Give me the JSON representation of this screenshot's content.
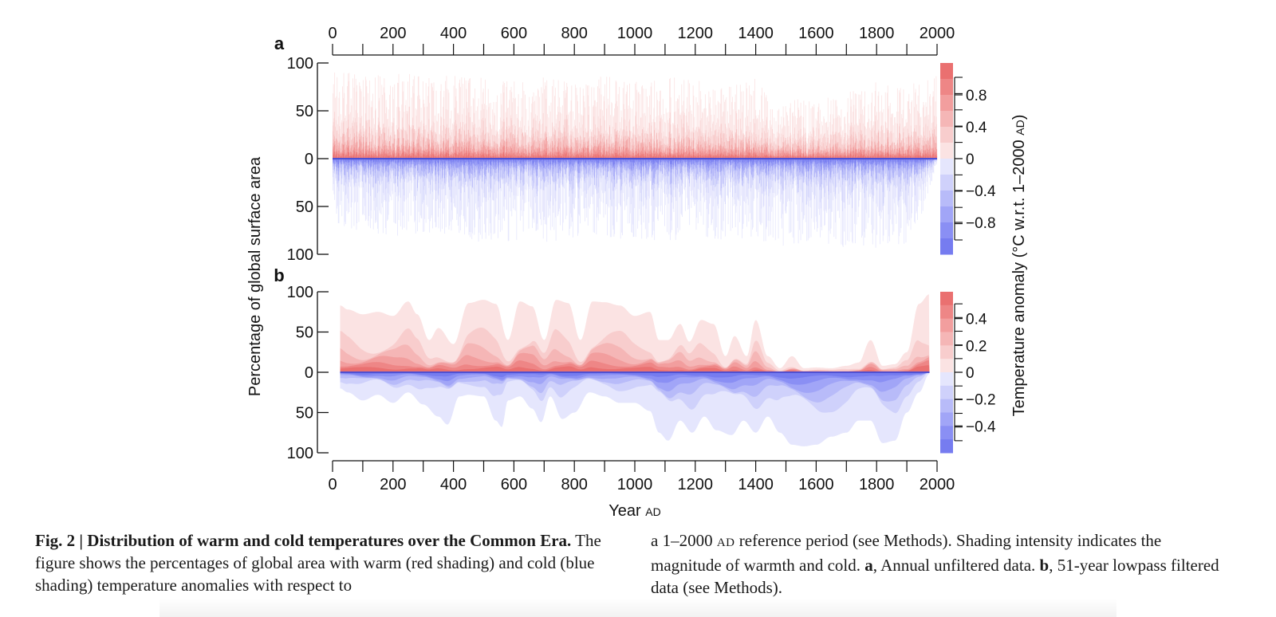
{
  "colors": {
    "warm": [
      "#fbe3e3",
      "#f8cdcd",
      "#f5b6b6",
      "#f29e9e",
      "#ee8686",
      "#ea7070"
    ],
    "cold": [
      "#e5e6fd",
      "#cfd1fb",
      "#b8bbf9",
      "#a1a5f7",
      "#8a8ff4",
      "#767cf0"
    ],
    "zero_line": "#5050d0"
  },
  "chart_data": [
    {
      "panel": "a",
      "type": "area",
      "description": "Annual unfiltered data",
      "xlim": [
        0,
        2000
      ],
      "ylim_warm": [
        0,
        100
      ],
      "ylim_cold": [
        0,
        100
      ],
      "x_ticks": [
        0,
        200,
        400,
        600,
        800,
        1000,
        1200,
        1400,
        1600,
        1800,
        2000
      ],
      "x_ticks_top": [
        "0",
        "200",
        "400",
        "600",
        "800",
        "1000",
        "1200",
        "1400",
        "1600",
        "1800",
        "2000"
      ],
      "y_ticks": [
        "100",
        "50",
        "0",
        "50",
        "100"
      ],
      "colorbar_ticks": [
        "0.8",
        "0.4",
        "0",
        "−0.4",
        "−0.8"
      ],
      "colorbar_values": [
        0.8,
        0.4,
        0,
        -0.4,
        -0.8
      ],
      "colorbar_range": [
        -1.2,
        1.2
      ],
      "series": [
        {
          "name": "warm (max envelope, annual)",
          "x": [
            0,
            100,
            200,
            250,
            300,
            400,
            500,
            600,
            700,
            800,
            900,
            1000,
            1100,
            1200,
            1300,
            1400,
            1450,
            1500,
            1600,
            1700,
            1800,
            1900,
            1950,
            2000
          ],
          "values": [
            92,
            90,
            88,
            95,
            85,
            88,
            86,
            82,
            85,
            84,
            87,
            85,
            88,
            83,
            80,
            85,
            60,
            65,
            60,
            70,
            80,
            75,
            85,
            95
          ]
        },
        {
          "name": "cold (max envelope, annual)",
          "x": [
            0,
            100,
            200,
            300,
            400,
            500,
            600,
            700,
            800,
            900,
            1000,
            1100,
            1200,
            1300,
            1400,
            1450,
            1500,
            1600,
            1700,
            1800,
            1900,
            1950,
            2000
          ],
          "values": [
            75,
            80,
            82,
            80,
            84,
            88,
            86,
            88,
            85,
            84,
            86,
            88,
            84,
            85,
            84,
            90,
            92,
            92,
            93,
            94,
            92,
            60,
            5
          ]
        }
      ]
    },
    {
      "panel": "b",
      "type": "area",
      "description": "51-year lowpass filtered data",
      "xlim": [
        0,
        2000
      ],
      "ylim_warm": [
        0,
        100
      ],
      "ylim_cold": [
        0,
        100
      ],
      "x_ticks": [
        0,
        200,
        400,
        600,
        800,
        1000,
        1200,
        1400,
        1600,
        1800,
        2000
      ],
      "x_ticks_bottom": [
        "0",
        "200",
        "400",
        "600",
        "800",
        "1000",
        "1200",
        "1400",
        "1600",
        "1800",
        "2000"
      ],
      "y_ticks": [
        "100",
        "50",
        "0",
        "50",
        "100"
      ],
      "colorbar_ticks": [
        "0.4",
        "0.2",
        "0",
        "−0.2",
        "−0.4"
      ],
      "colorbar_values": [
        0.4,
        0.2,
        0,
        -0.2,
        -0.4
      ],
      "colorbar_range": [
        -0.6,
        0.6
      ],
      "series": [
        {
          "name": "warm fraction",
          "x": [
            25,
            50,
            100,
            150,
            200,
            250,
            280,
            320,
            350,
            400,
            450,
            500,
            540,
            580,
            620,
            660,
            700,
            740,
            780,
            820,
            860,
            900,
            950,
            1000,
            1050,
            1080,
            1110,
            1150,
            1180,
            1220,
            1260,
            1300,
            1330,
            1370,
            1400,
            1440,
            1480,
            1520,
            1560,
            1600,
            1650,
            1700,
            1740,
            1780,
            1820,
            1860,
            1900,
            1940,
            1975
          ],
          "values": [
            83,
            78,
            72,
            75,
            70,
            88,
            72,
            40,
            55,
            35,
            86,
            90,
            85,
            40,
            88,
            82,
            40,
            90,
            86,
            40,
            88,
            87,
            83,
            70,
            75,
            40,
            40,
            60,
            38,
            65,
            60,
            20,
            45,
            20,
            65,
            20,
            5,
            20,
            5,
            6,
            5,
            8,
            12,
            40,
            8,
            10,
            25,
            85,
            97
          ]
        },
        {
          "name": "cold fraction",
          "x": [
            25,
            50,
            100,
            150,
            200,
            250,
            300,
            350,
            380,
            420,
            450,
            500,
            540,
            560,
            580,
            620,
            660,
            690,
            720,
            760,
            800,
            850,
            900,
            950,
            1000,
            1050,
            1080,
            1110,
            1150,
            1190,
            1230,
            1270,
            1320,
            1360,
            1400,
            1440,
            1480,
            1520,
            1560,
            1600,
            1650,
            1700,
            1740,
            1780,
            1820,
            1860,
            1900,
            1940,
            1975
          ],
          "values": [
            20,
            25,
            35,
            28,
            38,
            25,
            40,
            55,
            65,
            30,
            28,
            30,
            60,
            68,
            35,
            30,
            45,
            62,
            30,
            58,
            50,
            25,
            30,
            38,
            38,
            48,
            75,
            85,
            60,
            75,
            55,
            72,
            78,
            60,
            75,
            55,
            75,
            90,
            92,
            90,
            80,
            75,
            60,
            60,
            88,
            85,
            50,
            25,
            2
          ]
        }
      ]
    }
  ],
  "labels": {
    "panel_a": "a",
    "panel_b": "b",
    "ylabel": "Percentage of global surface area",
    "xlabel_main": "Year",
    "xlabel_unit": "AD",
    "colorbar_label_main": "Temperature anomaly (°C w.r.t. 1–2000",
    "colorbar_label_unit": "AD",
    "colorbar_label_close": ")"
  },
  "caption": {
    "fig_label": "Fig. 2 | Distribution of warm and cold temperatures over the Common Era.",
    "left_body": "The figure shows the percentages of global area with warm (red shading) and cold (blue shading) temperature anomalies with respect to",
    "right_intro": "a 1–2000",
    "right_ad": "AD",
    "right_rest": "reference period (see Methods). Shading intensity indicates the magnitude of warmth and cold.",
    "panel_a_key": "a",
    "panel_a_text": ", Annual unfiltered data.",
    "panel_b_key": "b",
    "panel_b_text": ", 51-year lowpass filtered data (see Methods)."
  }
}
